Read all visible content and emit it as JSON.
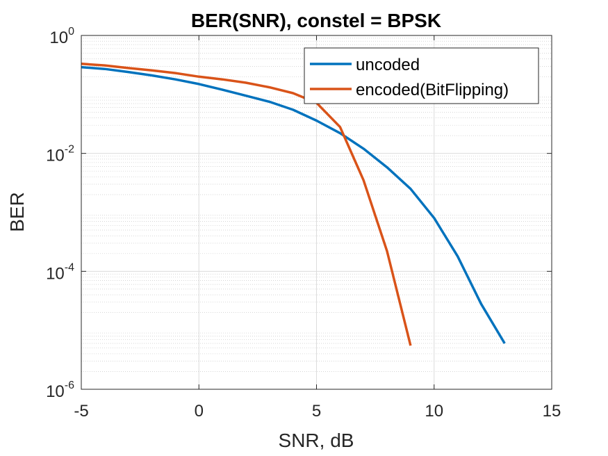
{
  "chart_data": {
    "type": "line",
    "title": "BER(SNR), constel = BPSK",
    "xlabel": "SNR, dB",
    "ylabel": "BER",
    "xlim": [
      -5,
      15
    ],
    "ylim": [
      1e-06,
      1
    ],
    "yscale": "log",
    "grid": true,
    "minor_grid": true,
    "x_ticks": [
      -5,
      0,
      5,
      10,
      15
    ],
    "x_tick_labels": [
      "-5",
      "0",
      "5",
      "10",
      "15"
    ],
    "y_ticks": [
      {
        "value": 1,
        "base": "10",
        "exp": "0"
      },
      {
        "value": 0.01,
        "base": "10",
        "exp": "-2"
      },
      {
        "value": 0.0001,
        "base": "10",
        "exp": "-4"
      },
      {
        "value": 1e-06,
        "base": "10",
        "exp": "-6"
      }
    ],
    "legend_position": "top-right",
    "series": [
      {
        "name": "uncoded",
        "color": "#0072BD",
        "x": [
          -5,
          -4,
          -3,
          -2,
          -1,
          0,
          1,
          2,
          3,
          4,
          5,
          6,
          7,
          8,
          9,
          10,
          11,
          12,
          13
        ],
        "y": [
          0.29,
          0.27,
          0.24,
          0.21,
          0.18,
          0.15,
          0.12,
          0.095,
          0.075,
          0.055,
          0.036,
          0.022,
          0.012,
          0.0058,
          0.0025,
          0.0008,
          0.00018,
          2.8e-05,
          6e-06
        ]
      },
      {
        "name": "encoded(BitFlipping)",
        "color": "#D95319",
        "x": [
          -5,
          -4,
          -3,
          -2,
          -1,
          0,
          1,
          2,
          3,
          4,
          5,
          6,
          7,
          8,
          9
        ],
        "y": [
          0.33,
          0.31,
          0.28,
          0.255,
          0.23,
          0.2,
          0.18,
          0.158,
          0.132,
          0.105,
          0.072,
          0.028,
          0.0035,
          0.00022,
          5.5e-06
        ]
      }
    ]
  }
}
